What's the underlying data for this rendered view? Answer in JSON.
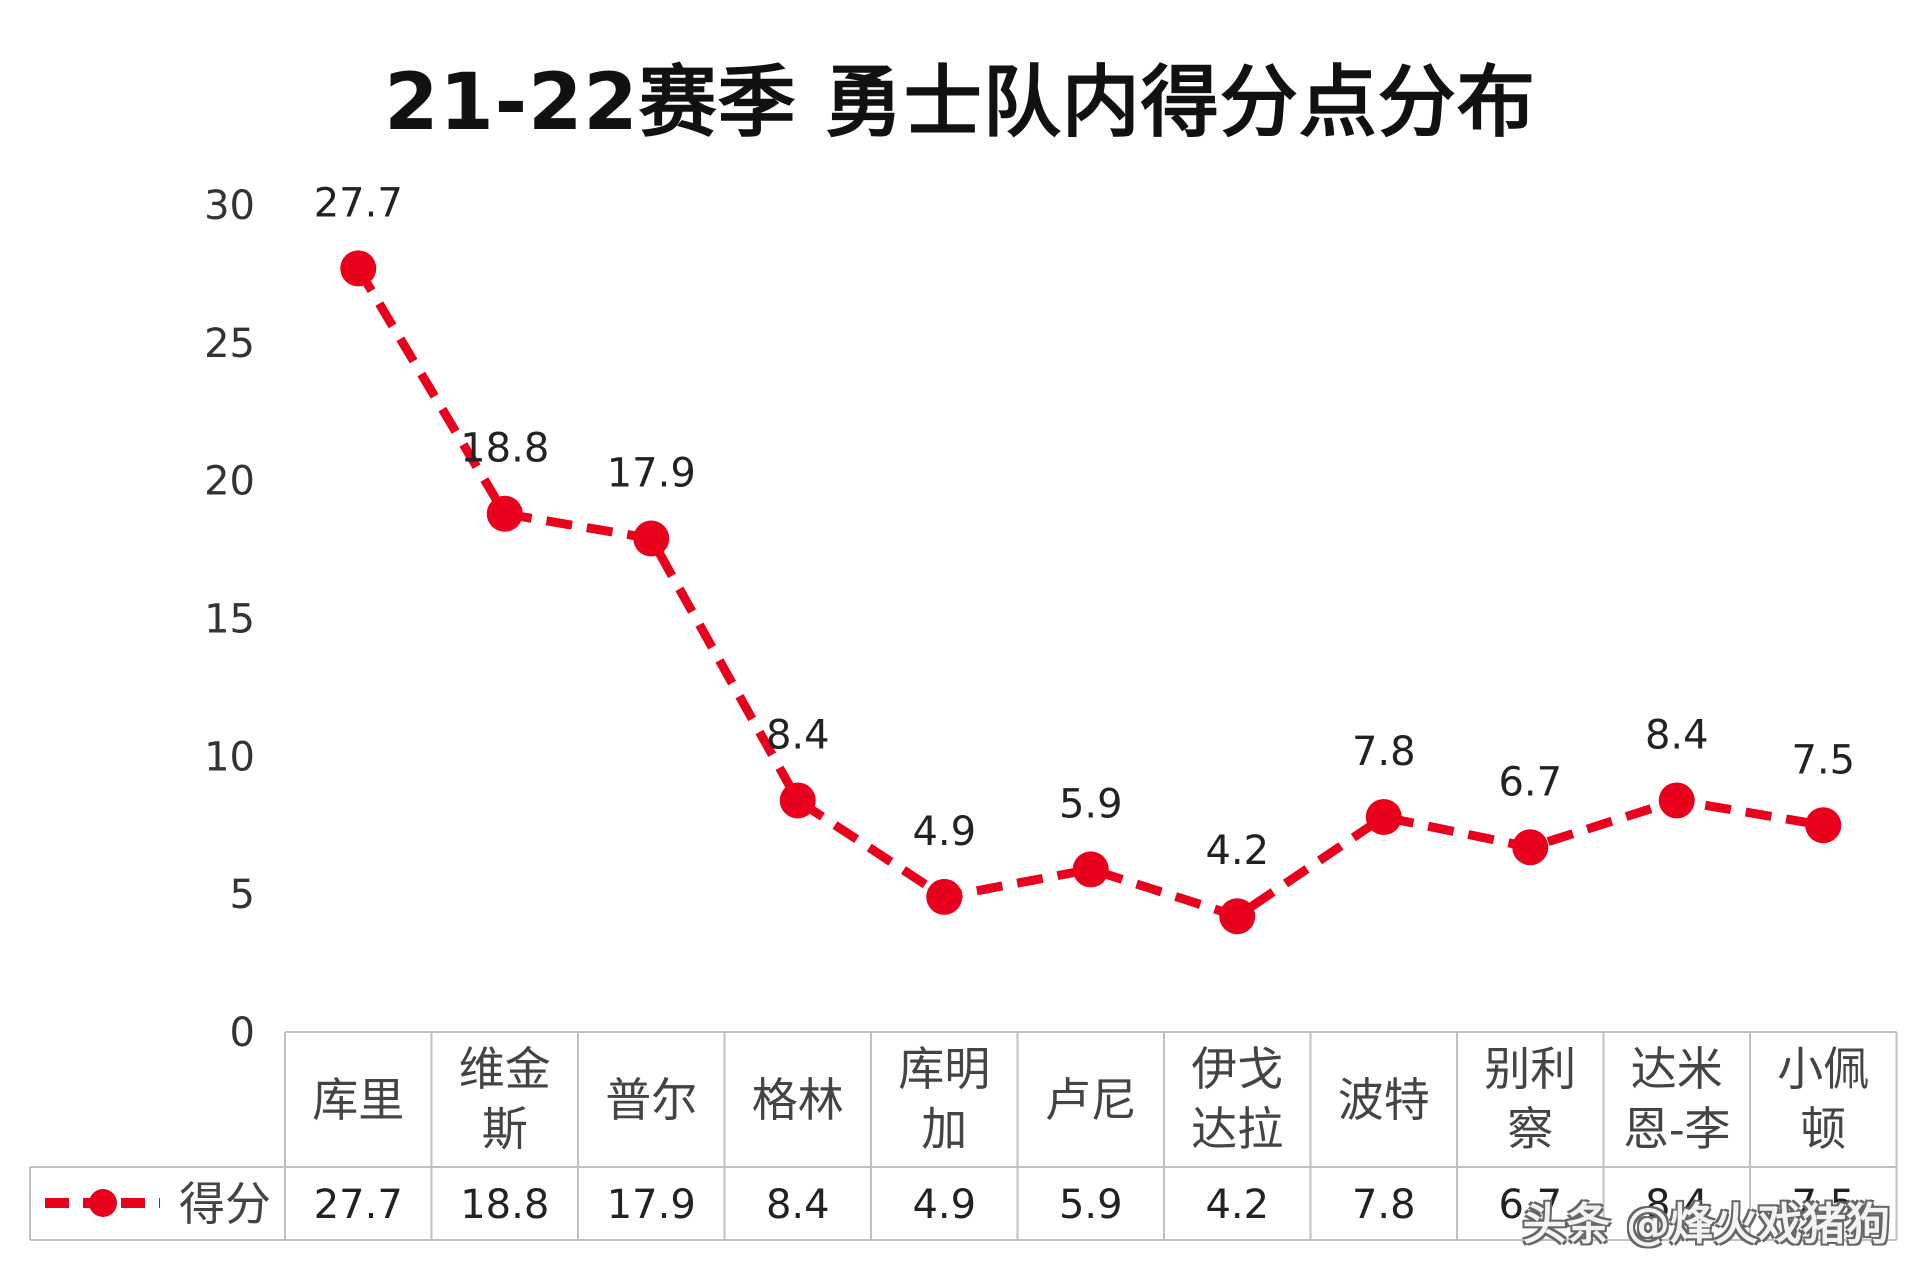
{
  "chart_data": {
    "type": "line",
    "title": "21-22赛季  勇士队内得分点分布",
    "categories": [
      "库里",
      "维金斯",
      "普尔",
      "格林",
      "库明加",
      "卢尼",
      "伊戈达拉",
      "波特",
      "别利察",
      "达米恩-李",
      "小佩顿"
    ],
    "category_lines": [
      [
        "库里"
      ],
      [
        "维金",
        "斯"
      ],
      [
        "普尔"
      ],
      [
        "格林"
      ],
      [
        "库明",
        "加"
      ],
      [
        "卢尼"
      ],
      [
        "伊戈",
        "达拉"
      ],
      [
        "波特"
      ],
      [
        "别利",
        "察"
      ],
      [
        "达米",
        "恩-李"
      ],
      [
        "小佩",
        "顿"
      ]
    ],
    "series": [
      {
        "name": "得分",
        "values": [
          27.7,
          18.8,
          17.9,
          8.4,
          4.9,
          5.9,
          4.2,
          7.8,
          6.7,
          8.4,
          7.5
        ]
      }
    ],
    "ylim": [
      0,
      30
    ],
    "yticks": [
      0,
      5,
      10,
      15,
      20,
      25,
      30
    ],
    "xlabel": "",
    "ylabel": "",
    "data_table": true,
    "line_style": "dashed",
    "marker": "circle",
    "series_color": "#e8001c"
  },
  "watermark": "头条 @烽火戏猪狗"
}
